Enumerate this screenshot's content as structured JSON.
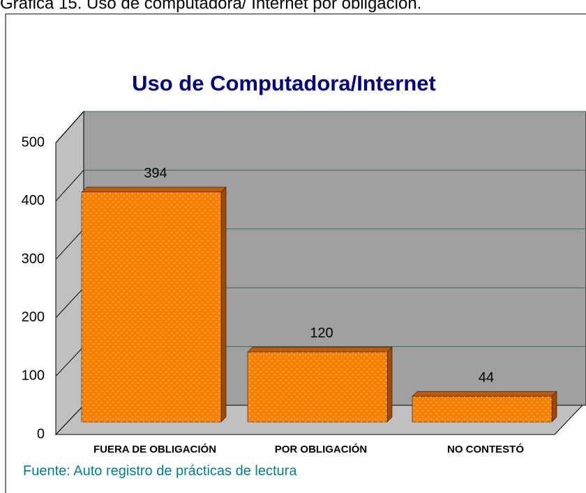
{
  "header": "Gráfica 15. Uso de computadora/ Internet por obligación.",
  "source": "Fuente: Auto registro de prácticas de lectura",
  "chart_data": {
    "type": "bar",
    "title": "Uso de Computadora/Internet",
    "categories": [
      "FUERA DE OBLIGACIÓN",
      "POR OBLIGACIÓN",
      "NO CONTESTÓ"
    ],
    "values": [
      394,
      120,
      44
    ],
    "color": "#ff8000",
    "ylim": [
      0,
      500
    ],
    "yticks": [
      0,
      100,
      200,
      300,
      400,
      500
    ],
    "grid": true
  }
}
